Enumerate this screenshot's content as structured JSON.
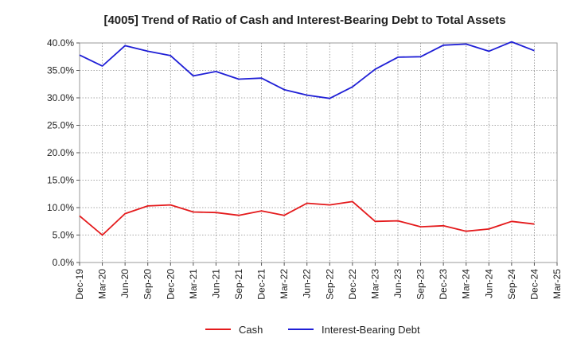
{
  "chart_data": {
    "type": "line",
    "title": "[4005]  Trend of Ratio of Cash and Interest-Bearing Debt to Total Assets",
    "xlabel": "",
    "ylabel": "",
    "ylim": [
      0,
      40
    ],
    "y_ticks": [
      0,
      5,
      10,
      15,
      20,
      25,
      30,
      35,
      40
    ],
    "y_tick_labels": [
      "0.0%",
      "5.0%",
      "10.0%",
      "15.0%",
      "20.0%",
      "25.0%",
      "30.0%",
      "35.0%",
      "40.0%"
    ],
    "categories": [
      "Dec-19",
      "Mar-20",
      "Jun-20",
      "Sep-20",
      "Dec-20",
      "Mar-21",
      "Jun-21",
      "Sep-21",
      "Dec-21",
      "Mar-22",
      "Jun-22",
      "Sep-22",
      "Dec-22",
      "Mar-23",
      "Jun-23",
      "Sep-23",
      "Dec-23",
      "Mar-24",
      "Jun-24",
      "Sep-24",
      "Dec-24",
      "Mar-25"
    ],
    "grid": true,
    "legend_position": "bottom",
    "series": [
      {
        "name": "Cash",
        "color": "#e41a1c",
        "values": [
          8.5,
          5.0,
          8.9,
          10.3,
          10.5,
          9.2,
          9.1,
          8.6,
          9.4,
          8.6,
          10.8,
          10.5,
          11.1,
          7.5,
          7.6,
          6.5,
          6.7,
          5.7,
          6.1,
          7.5,
          7.0,
          null
        ]
      },
      {
        "name": "Interest-Bearing Debt",
        "color": "#1f1fd6",
        "values": [
          37.8,
          35.8,
          39.5,
          38.5,
          37.7,
          34.0,
          34.8,
          33.4,
          33.6,
          31.5,
          30.5,
          29.9,
          32.0,
          35.2,
          37.4,
          37.5,
          39.6,
          39.8,
          38.5,
          40.2,
          38.6,
          null
        ]
      }
    ]
  }
}
